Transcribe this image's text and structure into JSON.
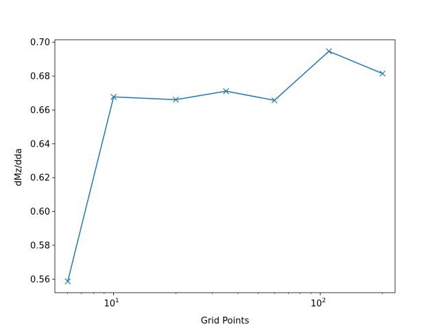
{
  "chart_data": {
    "type": "line",
    "xlabel": "Grid Points",
    "ylabel": "dMz/dda",
    "xscale": "log",
    "xlim": [
      5.2,
      230
    ],
    "ylim": [
      0.552,
      0.7015
    ],
    "xticks": [
      {
        "value": 10,
        "label": "10",
        "exponent": "1"
      },
      {
        "value": 100,
        "label": "10",
        "exponent": "2"
      }
    ],
    "yticks": [
      {
        "value": 0.56,
        "label": "0.56"
      },
      {
        "value": 0.58,
        "label": "0.58"
      },
      {
        "value": 0.6,
        "label": "0.60"
      },
      {
        "value": 0.62,
        "label": "0.62"
      },
      {
        "value": 0.64,
        "label": "0.64"
      },
      {
        "value": 0.66,
        "label": "0.66"
      },
      {
        "value": 0.68,
        "label": "0.68"
      },
      {
        "value": 0.7,
        "label": "0.70"
      }
    ],
    "series": [
      {
        "color": "#1f77b4",
        "marker": "x",
        "x": [
          6,
          10,
          20,
          35,
          60,
          110,
          200
        ],
        "y": [
          0.5587,
          0.6677,
          0.6661,
          0.6711,
          0.6657,
          0.6947,
          0.6815
        ]
      }
    ],
    "grid": false,
    "legend": "none"
  }
}
